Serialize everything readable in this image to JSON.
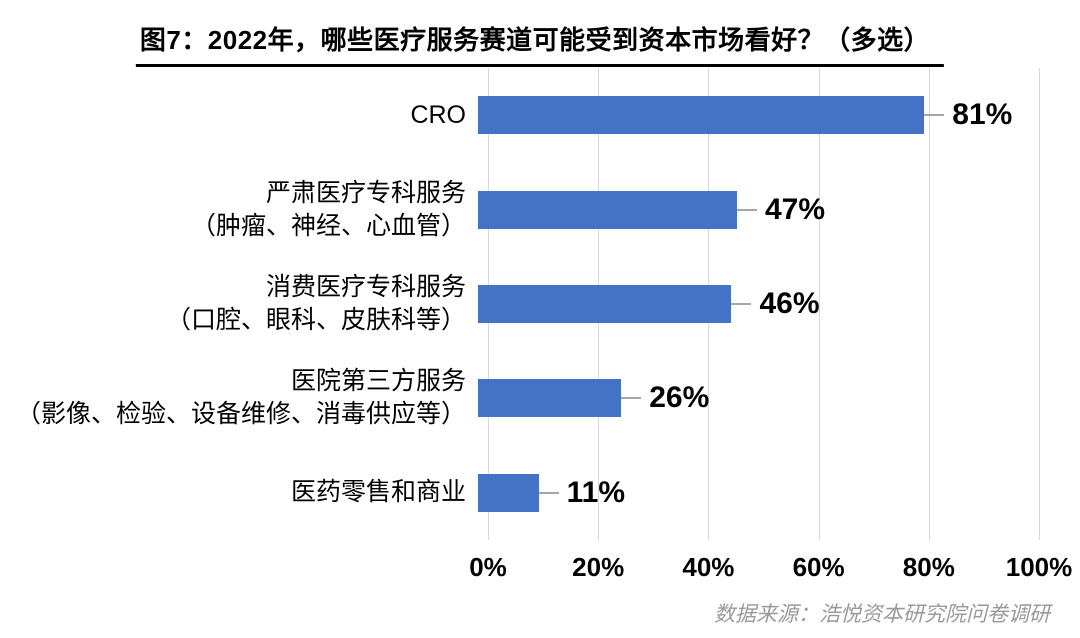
{
  "title": "图7：2022年，哪些医疗服务赛道可能受到资本市场看好？（多选）",
  "source": "数据来源：浩悦资本研究院问卷调研",
  "colors": {
    "bar": "#4472C4",
    "gridline": "#D9D9D9",
    "leader_line": "#A6A6A6",
    "title_text": "#000000",
    "source_text": "#999999"
  },
  "chart_data": {
    "type": "bar",
    "orientation": "horizontal",
    "title": "图7：2022年，哪些医疗服务赛道可能受到资本市场看好？（多选）",
    "categories": [
      {
        "lines": [
          "CRO"
        ]
      },
      {
        "lines": [
          "严肃医疗专科服务",
          "（肿瘤、神经、心血管）"
        ]
      },
      {
        "lines": [
          "消费医疗专科服务",
          "（口腔、眼科、皮肤科等）"
        ]
      },
      {
        "lines": [
          "医院第三方服务",
          "（影像、检验、设备维修、消毒供应等）"
        ]
      },
      {
        "lines": [
          "医药零售和商业"
        ]
      }
    ],
    "values": [
      81,
      47,
      46,
      26,
      11
    ],
    "value_labels": [
      "81%",
      "47%",
      "46%",
      "26%",
      "11%"
    ],
    "x_ticks": [
      "0%",
      "20%",
      "40%",
      "60%",
      "80%",
      "100%"
    ],
    "xlim": [
      0,
      100
    ],
    "xlabel": "",
    "ylabel": "",
    "grid": true,
    "legend": null,
    "annotation": "数据来源：浩悦资本研究院问卷调研"
  }
}
